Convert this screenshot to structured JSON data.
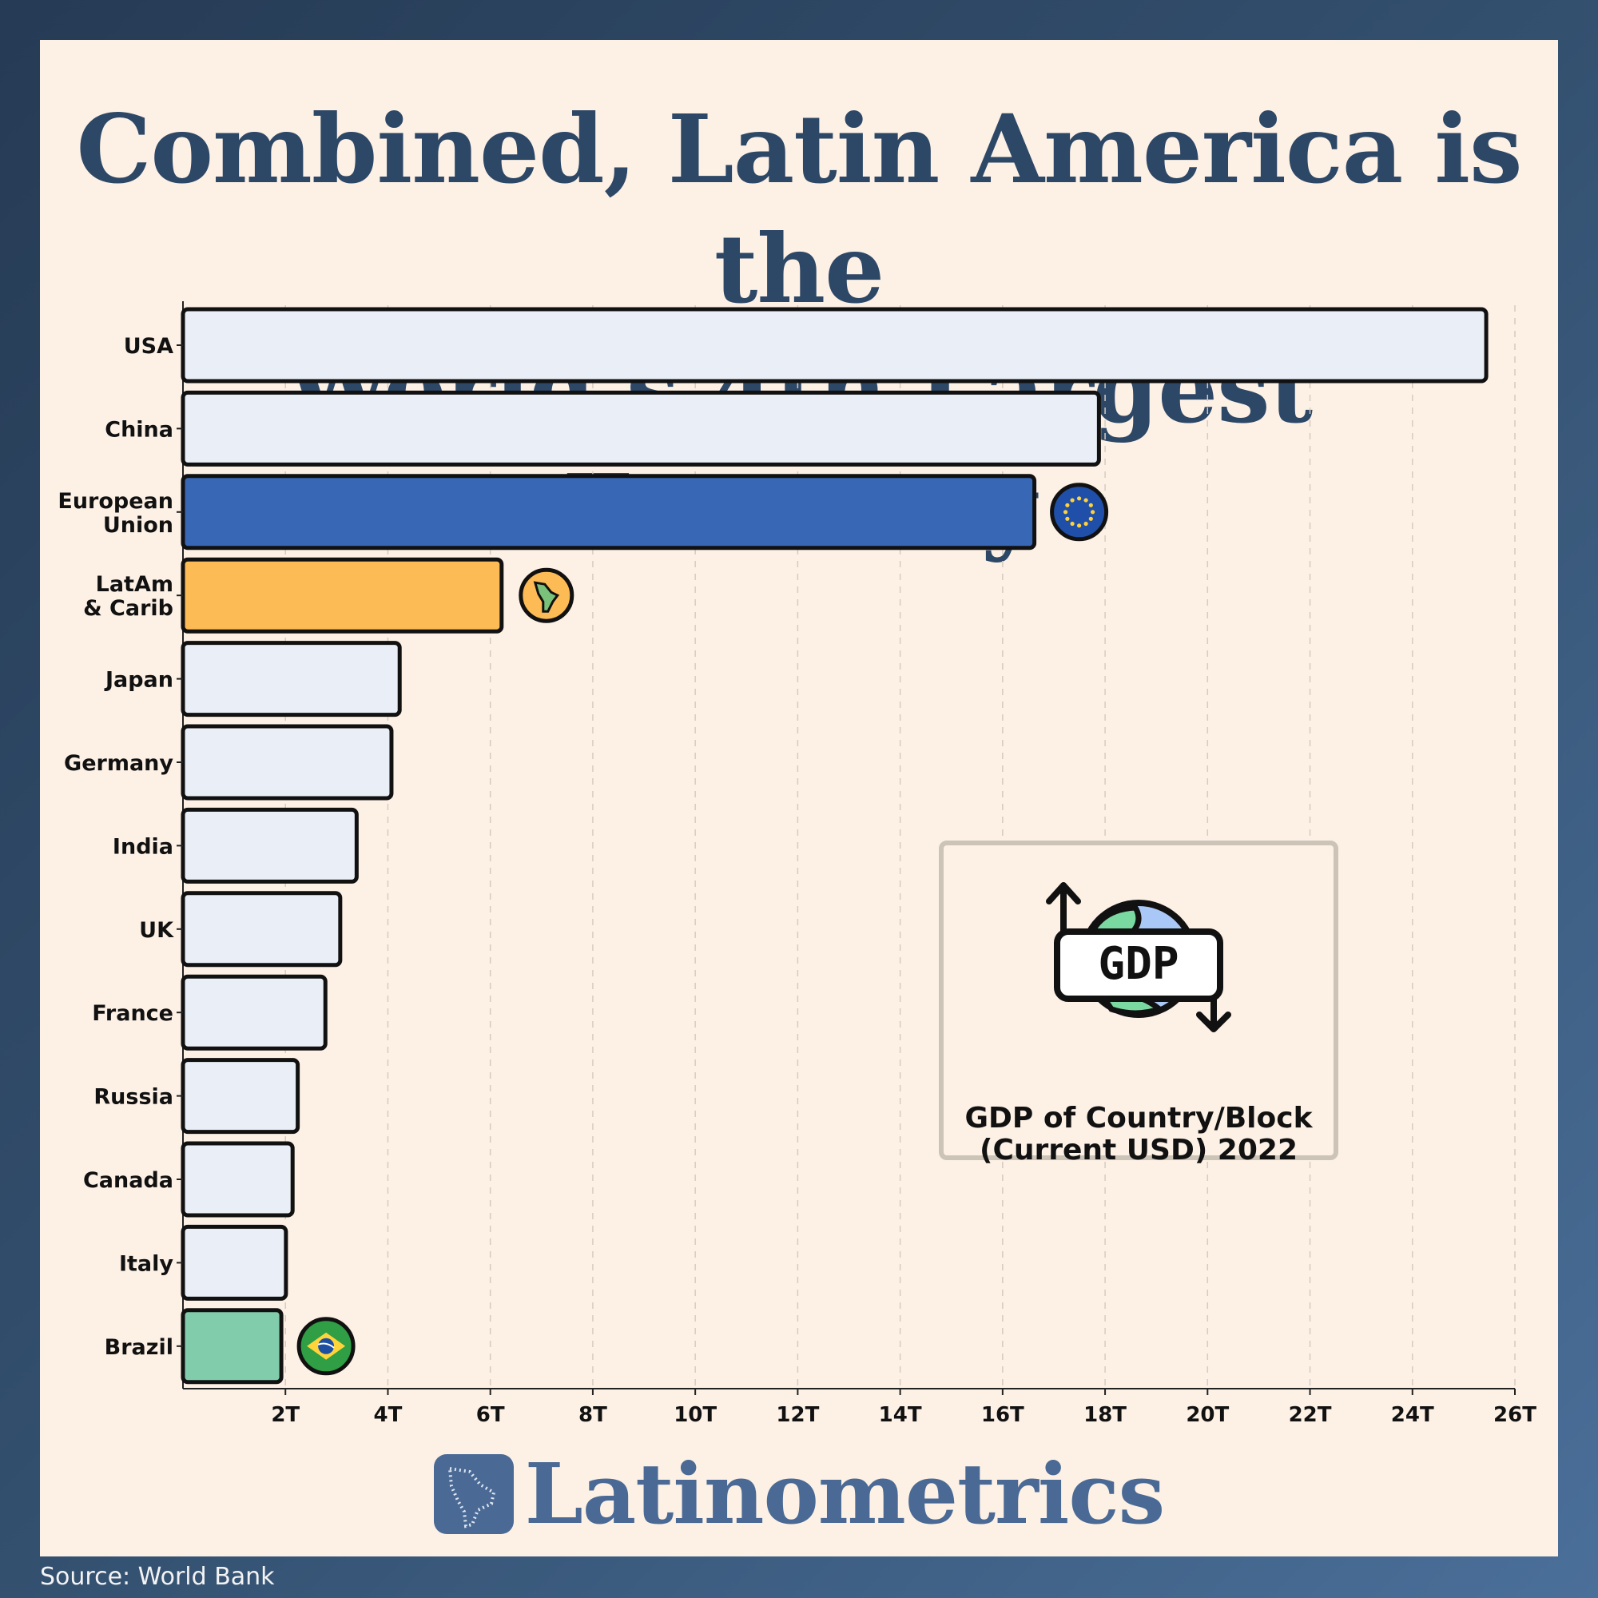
{
  "title_line1": "Combined, Latin America is the",
  "title_line2": "World’s 4th Largest Economy",
  "legend": {
    "icon_text": "GDP",
    "line1": "GDP of Country/Block",
    "line2": "(Current USD) 2022"
  },
  "brand": "Latinometrics",
  "source": "Source: World Bank",
  "colors": {
    "default_bar": "#eaeff7",
    "eu_bar": "#3868b5",
    "latam_bar": "#fdbb55",
    "brazil_bar": "#81cdab",
    "title": "#2d4766",
    "brand": "#4a6a95"
  },
  "chart_data": {
    "type": "bar",
    "orientation": "horizontal",
    "categories": [
      "USA",
      "China",
      "European Union",
      "LatAm & Carib",
      "Japan",
      "Germany",
      "India",
      "UK",
      "France",
      "Russia",
      "Canada",
      "Italy",
      "Brazil"
    ],
    "category_labels": [
      [
        "USA"
      ],
      [
        "China"
      ],
      [
        "European",
        "Union"
      ],
      [
        "LatAm",
        "& Carib"
      ],
      [
        "Japan"
      ],
      [
        "Germany"
      ],
      [
        "India"
      ],
      [
        "UK"
      ],
      [
        "France"
      ],
      [
        "Russia"
      ],
      [
        "Canada"
      ],
      [
        "Italy"
      ],
      [
        "Brazil"
      ]
    ],
    "values": [
      25.44,
      17.88,
      16.62,
      6.22,
      4.23,
      4.07,
      3.39,
      3.07,
      2.78,
      2.24,
      2.14,
      2.01,
      1.92
    ],
    "unit": "trillion USD",
    "xlim": [
      0,
      26
    ],
    "xticks": [
      2,
      4,
      6,
      8,
      10,
      12,
      14,
      16,
      18,
      20,
      22,
      24,
      26
    ],
    "xtick_labels": [
      "2T",
      "4T",
      "6T",
      "8T",
      "10T",
      "12T",
      "14T",
      "16T",
      "18T",
      "20T",
      "22T",
      "24T",
      "26T"
    ],
    "grid": "vertical dashed",
    "highlight_icons": {
      "European Union": "eu-flag-icon",
      "LatAm & Carib": "latin-america-map-icon",
      "Brazil": "brazil-flag-icon"
    }
  }
}
